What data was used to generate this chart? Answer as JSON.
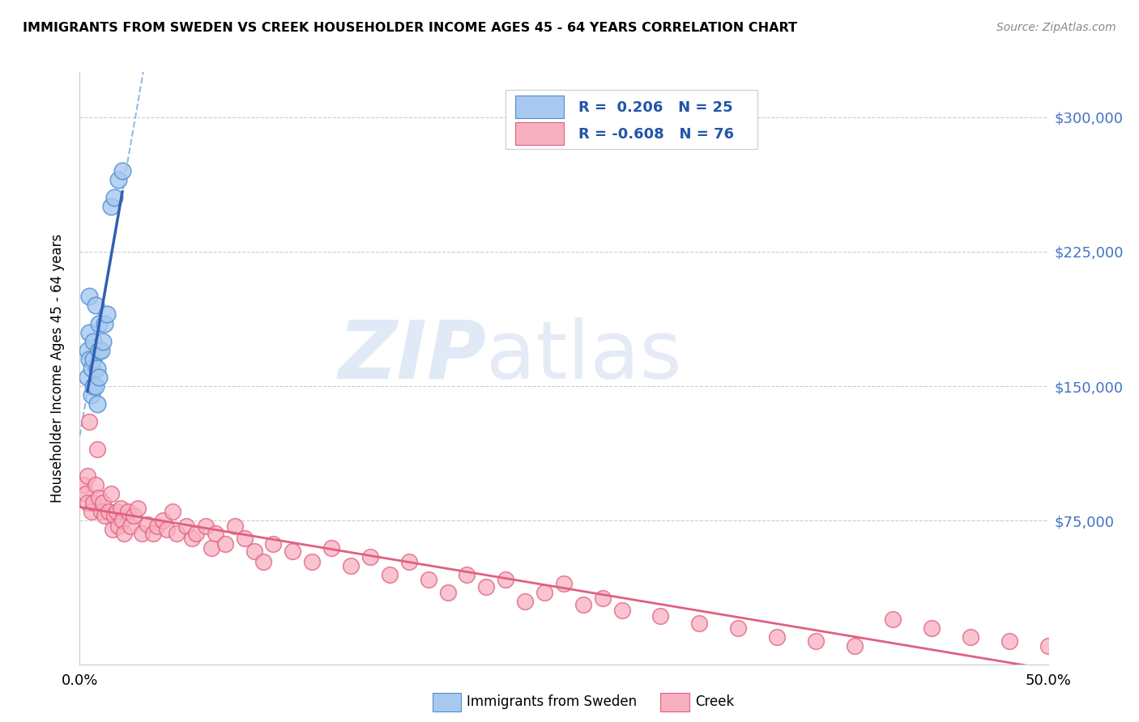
{
  "title": "IMMIGRANTS FROM SWEDEN VS CREEK HOUSEHOLDER INCOME AGES 45 - 64 YEARS CORRELATION CHART",
  "source": "Source: ZipAtlas.com",
  "ylabel": "Householder Income Ages 45 - 64 years",
  "ytick_values": [
    75000,
    150000,
    225000,
    300000
  ],
  "ylim": [
    -5000,
    325000
  ],
  "xlim": [
    0.0,
    0.5
  ],
  "xtick_positions": [
    0.0,
    0.5
  ],
  "xtick_labels": [
    "0.0%",
    "50.0%"
  ],
  "legend_label1": "Immigrants from Sweden",
  "legend_label2": "Creek",
  "R1": "0.206",
  "N1": "25",
  "R2": "-0.608",
  "N2": "76",
  "color_sweden_fill": "#a8c8f0",
  "color_sweden_edge": "#5090d0",
  "color_sweden_line": "#3060b0",
  "color_creek_fill": "#f8b0c0",
  "color_creek_edge": "#e06080",
  "color_creek_line": "#e06080",
  "color_dashed": "#8ab0e0",
  "sweden_x": [
    0.004,
    0.004,
    0.005,
    0.005,
    0.005,
    0.006,
    0.006,
    0.007,
    0.007,
    0.007,
    0.008,
    0.008,
    0.009,
    0.009,
    0.01,
    0.01,
    0.01,
    0.011,
    0.012,
    0.013,
    0.014,
    0.016,
    0.018,
    0.02,
    0.022
  ],
  "sweden_y": [
    155000,
    170000,
    165000,
    180000,
    200000,
    145000,
    160000,
    150000,
    165000,
    175000,
    150000,
    195000,
    140000,
    160000,
    155000,
    170000,
    185000,
    170000,
    175000,
    185000,
    190000,
    250000,
    255000,
    265000,
    270000
  ],
  "creek_x": [
    0.002,
    0.003,
    0.004,
    0.004,
    0.005,
    0.006,
    0.007,
    0.008,
    0.009,
    0.01,
    0.011,
    0.012,
    0.013,
    0.015,
    0.016,
    0.017,
    0.018,
    0.019,
    0.02,
    0.021,
    0.022,
    0.023,
    0.025,
    0.026,
    0.028,
    0.03,
    0.032,
    0.035,
    0.038,
    0.04,
    0.043,
    0.045,
    0.048,
    0.05,
    0.055,
    0.058,
    0.06,
    0.065,
    0.068,
    0.07,
    0.075,
    0.08,
    0.085,
    0.09,
    0.095,
    0.1,
    0.11,
    0.12,
    0.13,
    0.14,
    0.15,
    0.16,
    0.17,
    0.18,
    0.19,
    0.2,
    0.21,
    0.22,
    0.23,
    0.24,
    0.25,
    0.26,
    0.27,
    0.28,
    0.3,
    0.32,
    0.34,
    0.36,
    0.38,
    0.4,
    0.42,
    0.44,
    0.46,
    0.48,
    0.5,
    0.52
  ],
  "creek_y": [
    95000,
    90000,
    85000,
    100000,
    130000,
    80000,
    85000,
    95000,
    115000,
    88000,
    80000,
    85000,
    78000,
    80000,
    90000,
    70000,
    78000,
    80000,
    72000,
    82000,
    75000,
    68000,
    80000,
    72000,
    78000,
    82000,
    68000,
    73000,
    68000,
    72000,
    75000,
    70000,
    80000,
    68000,
    72000,
    65000,
    68000,
    72000,
    60000,
    68000,
    62000,
    72000,
    65000,
    58000,
    52000,
    62000,
    58000,
    52000,
    60000,
    50000,
    55000,
    45000,
    52000,
    42000,
    35000,
    45000,
    38000,
    42000,
    30000,
    35000,
    40000,
    28000,
    32000,
    25000,
    22000,
    18000,
    15000,
    10000,
    8000,
    5000,
    20000,
    15000,
    10000,
    8000,
    5000,
    3000
  ]
}
